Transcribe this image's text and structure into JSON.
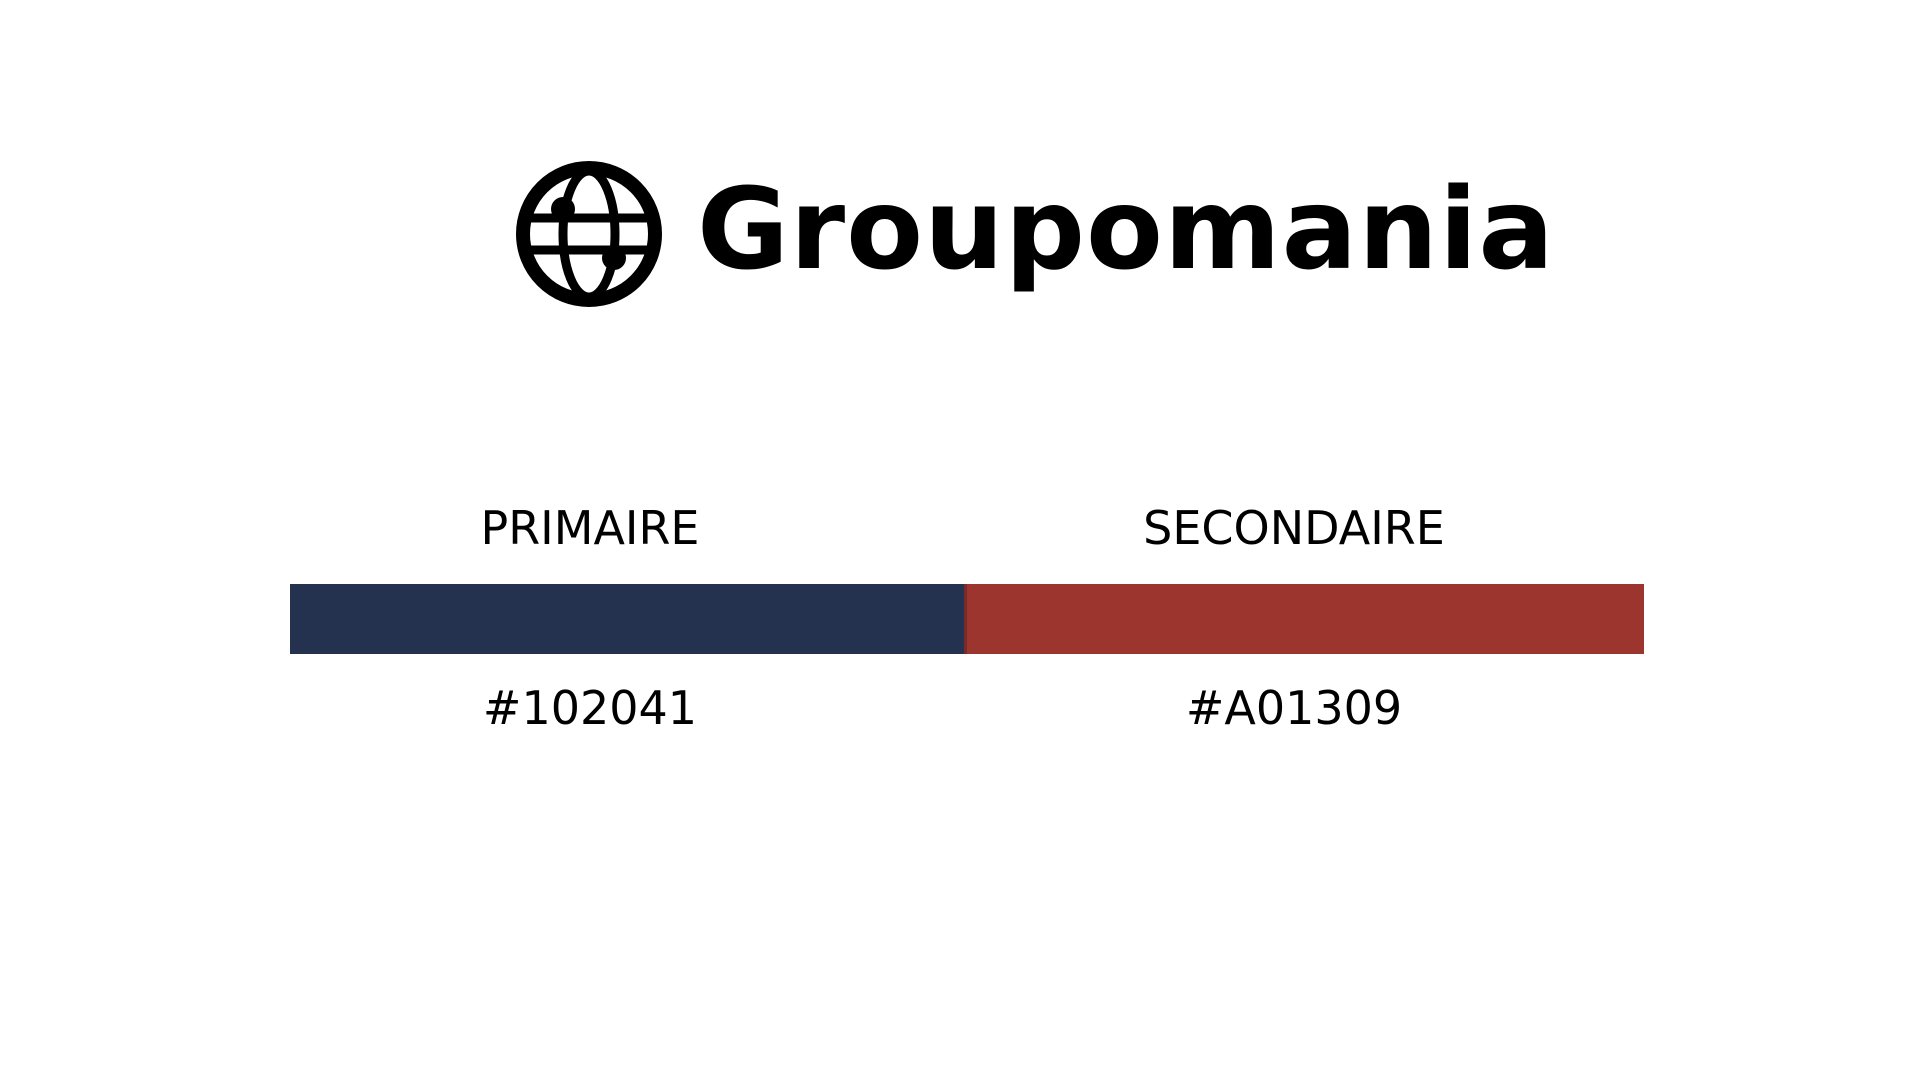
{
  "brand": {
    "name": "Groupomania",
    "icon": "globe-icon"
  },
  "palette": {
    "primary": {
      "label": "PRIMAIRE",
      "code": "#102041",
      "display_color": "#243250"
    },
    "secondary": {
      "label": "SECONDAIRE",
      "code": "#A01309",
      "display_color": "#9c352d"
    }
  }
}
